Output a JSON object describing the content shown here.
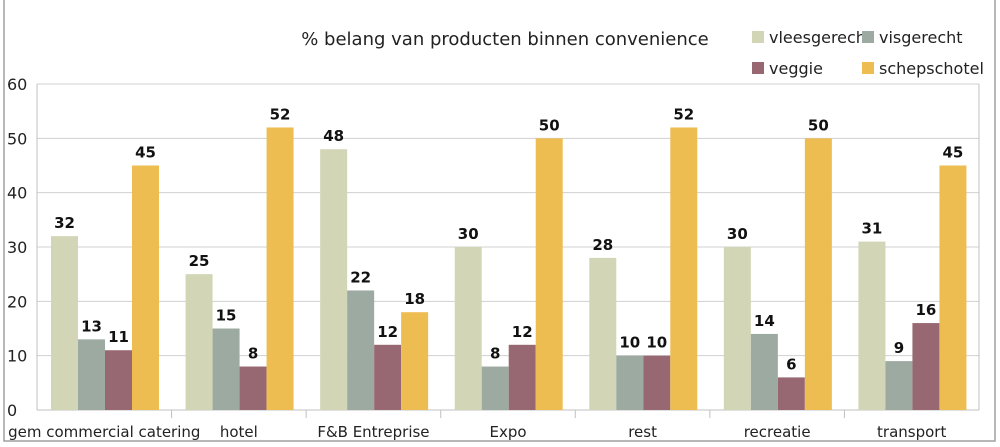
{
  "chart_data": {
    "type": "bar",
    "title": "% belang van producten binnen convenience",
    "categories": [
      "gem commercial catering",
      "hotel",
      "F&B Entreprise",
      "Expo",
      "rest",
      "recreatie",
      "transport"
    ],
    "series": [
      {
        "name": "vleesgerecht",
        "color": "#d3d6b6",
        "values": [
          32,
          25,
          48,
          30,
          28,
          30,
          31
        ]
      },
      {
        "name": "visgerecht",
        "color": "#9daa a1",
        "values": [
          13,
          15,
          22,
          8,
          10,
          14,
          9
        ]
      },
      {
        "name": "veggie",
        "color": "#986872",
        "values": [
          11,
          8,
          12,
          12,
          10,
          6,
          16
        ]
      },
      {
        "name": "schepschotel",
        "color": "#eebd52",
        "values": [
          45,
          52,
          18,
          50,
          52,
          50,
          45
        ]
      }
    ],
    "ylim": [
      0,
      60
    ],
    "yticks": [
      0,
      10,
      20,
      30,
      40,
      50,
      60
    ],
    "grid": true,
    "legend_position": "top-right",
    "data_labels": true
  }
}
